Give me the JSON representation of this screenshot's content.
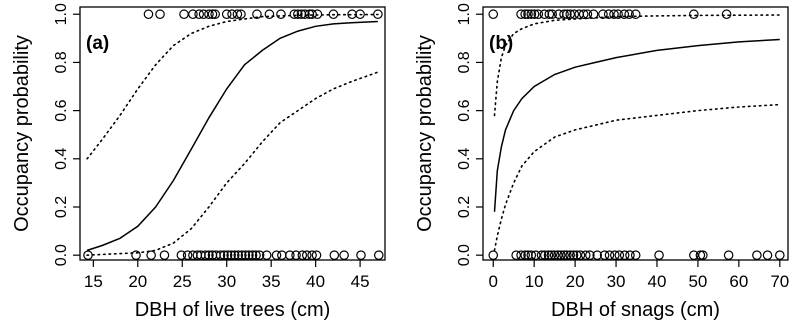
{
  "chart_data": [
    {
      "type": "scatter",
      "panel_label": "(a)",
      "xlabel": "DBH of live trees (cm)",
      "ylabel": "Occupancy probability",
      "xlim": [
        13.5,
        47.8
      ],
      "ylim": [
        -0.02,
        1.03
      ],
      "xticks": [
        15,
        20,
        25,
        30,
        35,
        40,
        45
      ],
      "yticks": [
        0.0,
        0.2,
        0.4,
        0.6,
        0.8,
        1.0
      ],
      "xtick_labels": [
        "15",
        "20",
        "25",
        "30",
        "35",
        "40",
        "45"
      ],
      "ytick_labels": [
        "0.0",
        "0.2",
        "0.4",
        "0.6",
        "0.8",
        "1.0"
      ],
      "fit_curve": {
        "style": "solid",
        "x": [
          14.3,
          16,
          18,
          20,
          22,
          24,
          26,
          28,
          30,
          32,
          34,
          36,
          38,
          40,
          42,
          44,
          47
        ],
        "y": [
          0.02,
          0.04,
          0.07,
          0.12,
          0.2,
          0.31,
          0.44,
          0.57,
          0.69,
          0.79,
          0.85,
          0.9,
          0.93,
          0.95,
          0.96,
          0.965,
          0.97
        ]
      },
      "ci_upper": {
        "style": "dotted",
        "x": [
          14.3,
          16,
          18,
          20,
          22,
          24,
          26,
          28,
          30,
          32,
          34,
          36,
          38,
          40,
          42,
          44,
          47
        ],
        "y": [
          0.4,
          0.48,
          0.58,
          0.69,
          0.79,
          0.87,
          0.92,
          0.95,
          0.97,
          0.98,
          0.99,
          0.993,
          0.995,
          0.997,
          0.998,
          0.998,
          0.999
        ]
      },
      "ci_lower": {
        "style": "dotted",
        "x": [
          14.3,
          17,
          20,
          22,
          24,
          26,
          28,
          30,
          32,
          34,
          36,
          38,
          40,
          42,
          44,
          47
        ],
        "y": [
          0.0,
          0.005,
          0.01,
          0.02,
          0.05,
          0.11,
          0.2,
          0.3,
          0.38,
          0.47,
          0.55,
          0.6,
          0.65,
          0.69,
          0.72,
          0.76
        ]
      },
      "points_y1": [
        21.2,
        22.5,
        25.2,
        26.2,
        26.9,
        27.4,
        28.0,
        28.4,
        28.7,
        30.0,
        30.6,
        31.2,
        31.6,
        33.4,
        34.8,
        36.1,
        37.6,
        38.0,
        38.4,
        38.8,
        39.3,
        39.6,
        40.2,
        42.0,
        44.1,
        45.0,
        47.0
      ],
      "points_y0": [
        14.4,
        19.8,
        21.5,
        23.0,
        24.9,
        25.6,
        26.2,
        26.7,
        27.1,
        27.6,
        28.0,
        28.4,
        28.8,
        29.3,
        29.7,
        30.1,
        30.5,
        30.9,
        31.3,
        31.7,
        32.1,
        32.5,
        32.9,
        33.3,
        33.7,
        34.5,
        35.6,
        36.2,
        37.1,
        37.8,
        38.5,
        39.0,
        39.6,
        40.1,
        42.1,
        43.2,
        45.1,
        47.1
      ]
    },
    {
      "type": "scatter",
      "panel_label": "(b)",
      "xlabel": "DBH of snags (cm)",
      "ylabel": "Occupancy probability",
      "xlim": [
        -2.5,
        72
      ],
      "ylim": [
        -0.02,
        1.03
      ],
      "xticks": [
        0,
        10,
        20,
        30,
        40,
        50,
        60,
        70
      ],
      "yticks": [
        0.0,
        0.2,
        0.4,
        0.6,
        0.8,
        1.0
      ],
      "xtick_labels": [
        "0",
        "10",
        "20",
        "30",
        "40",
        "50",
        "60",
        "70"
      ],
      "ytick_labels": [
        "0.0",
        "0.2",
        "0.4",
        "0.6",
        "0.8",
        "1.0"
      ],
      "fit_curve": {
        "style": "solid",
        "x": [
          0.3,
          1,
          2,
          3,
          4,
          5,
          7,
          10,
          15,
          20,
          25,
          30,
          40,
          50,
          60,
          70
        ],
        "y": [
          0.18,
          0.35,
          0.45,
          0.52,
          0.56,
          0.6,
          0.65,
          0.7,
          0.75,
          0.78,
          0.8,
          0.82,
          0.85,
          0.87,
          0.885,
          0.895
        ]
      },
      "ci_upper": {
        "style": "dotted",
        "x": [
          0.3,
          1,
          2,
          3,
          5,
          7,
          10,
          15,
          20,
          30,
          40,
          50,
          60,
          70
        ],
        "y": [
          0.58,
          0.72,
          0.82,
          0.87,
          0.92,
          0.94,
          0.96,
          0.975,
          0.98,
          0.99,
          0.993,
          0.995,
          0.996,
          0.997
        ]
      },
      "ci_lower": {
        "style": "dotted",
        "x": [
          0.3,
          1,
          2,
          3,
          5,
          7,
          10,
          15,
          20,
          25,
          30,
          40,
          50,
          60,
          70
        ],
        "y": [
          0.02,
          0.08,
          0.15,
          0.21,
          0.3,
          0.37,
          0.43,
          0.49,
          0.52,
          0.54,
          0.56,
          0.58,
          0.6,
          0.615,
          0.625
        ]
      },
      "points_y1": [
        0.0,
        6.8,
        7.8,
        8.5,
        9.3,
        10.1,
        11.0,
        12.5,
        13.7,
        14.4,
        16.0,
        17.3,
        18.0,
        18.8,
        19.8,
        21.0,
        22.1,
        23.0,
        24.5,
        26.8,
        28.2,
        29.5,
        30.5,
        32.0,
        33.2,
        34.8,
        49.0,
        57.0
      ],
      "points_y0": [
        0.0,
        5.6,
        6.8,
        7.8,
        8.5,
        9.3,
        10.4,
        11.8,
        12.6,
        13.5,
        14.2,
        15.0,
        15.8,
        16.5,
        17.3,
        18.0,
        18.8,
        19.6,
        20.4,
        21.3,
        22.6,
        23.6,
        25.4,
        27.2,
        28.4,
        29.7,
        30.8,
        32.1,
        33.4,
        34.8,
        40.5,
        49.0,
        50.6,
        51.2,
        57.5,
        64.4,
        67.0,
        70.0
      ]
    }
  ]
}
